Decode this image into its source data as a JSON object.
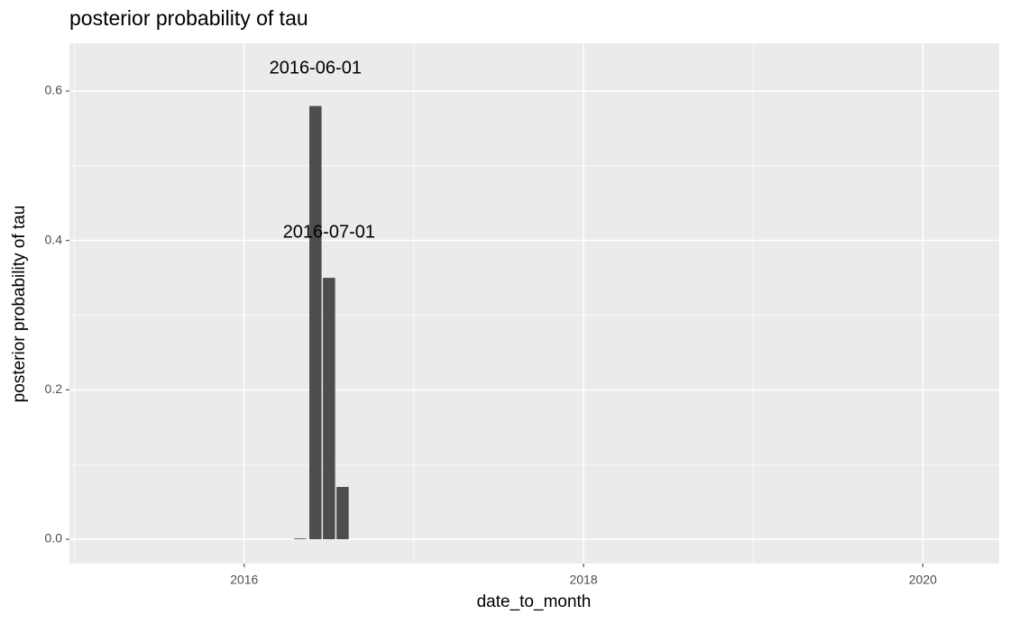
{
  "chart_data": {
    "type": "bar",
    "title": "posterior probability of tau",
    "x_label": "date_to_month",
    "y_label": "posterior probability of tau",
    "x": [
      2016.33,
      2016.42,
      2016.5,
      2016.58
    ],
    "values": [
      0.001,
      0.58,
      0.35,
      0.07
    ],
    "color": "#4d4d4d",
    "xlim": [
      2014.97,
      2020.45
    ],
    "xticks": [
      2016,
      2018,
      2020
    ],
    "xminor": [
      2015,
      2017,
      2019
    ],
    "ylim": [
      -0.0326,
      0.664
    ],
    "yticks": [
      {
        "value": 0,
        "label": "0.0"
      },
      0.2,
      0.4,
      0.6
    ],
    "yminor": [
      0.1,
      0.3,
      0.5
    ],
    "grid": true,
    "annotations": [
      {
        "text": "2016-06-01",
        "x": 2016.42,
        "y": 0.63
      },
      {
        "text": "2016-07-01",
        "x": 2016.5,
        "y": 0.41
      }
    ]
  }
}
